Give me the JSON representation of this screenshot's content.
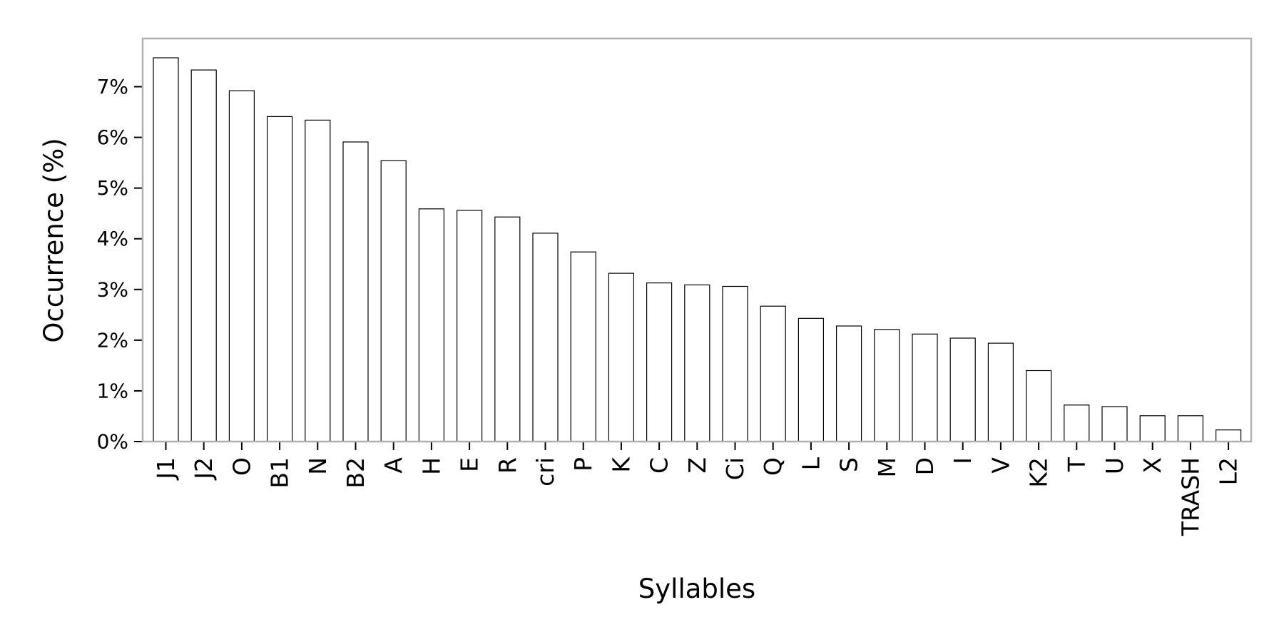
{
  "chart_data": {
    "type": "bar",
    "title": "",
    "xlabel": "Syllables",
    "ylabel": "Occurrence (%)",
    "categories": [
      "J1",
      "J2",
      "O",
      "B1",
      "N",
      "B2",
      "A",
      "H",
      "E",
      "R",
      "cri",
      "P",
      "K",
      "C",
      "Z",
      "Ci",
      "Q",
      "L",
      "S",
      "M",
      "D",
      "I",
      "V",
      "K2",
      "T",
      "U",
      "X",
      "TRASH",
      "L2"
    ],
    "values": [
      7.57,
      7.33,
      6.92,
      6.41,
      6.34,
      5.91,
      5.54,
      4.59,
      4.56,
      4.43,
      4.11,
      3.74,
      3.32,
      3.13,
      3.09,
      3.06,
      2.67,
      2.43,
      2.28,
      2.21,
      2.12,
      2.04,
      1.94,
      1.4,
      0.72,
      0.69,
      0.51,
      0.51,
      0.23
    ],
    "ylim": [
      0,
      7.95
    ],
    "yticks": [
      0,
      1,
      2,
      3,
      4,
      5,
      6,
      7
    ],
    "ytick_labels": [
      "0%",
      "1%",
      "2%",
      "3%",
      "4%",
      "5%",
      "6%",
      "7%"
    ],
    "grid": false,
    "colors": {
      "bar_fill": "#ffffff",
      "bar_edge": "#000000",
      "frame": "#b0b0b0",
      "tick": "#000000"
    }
  }
}
